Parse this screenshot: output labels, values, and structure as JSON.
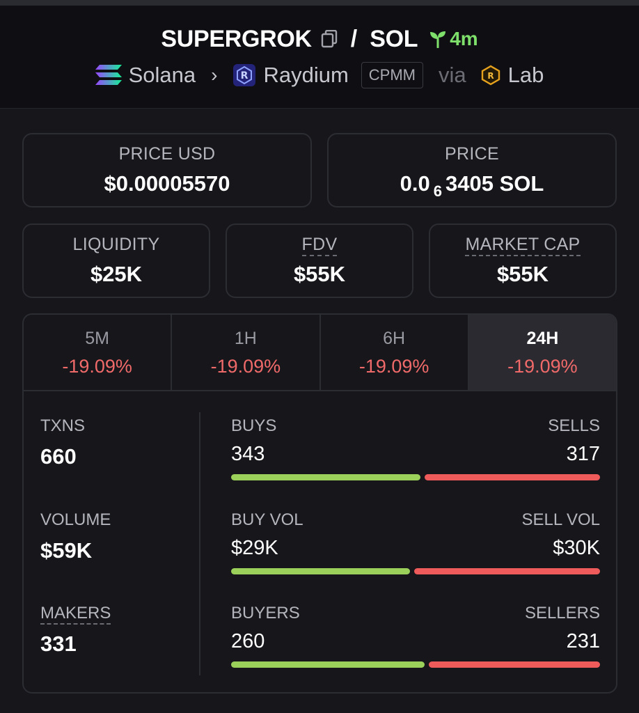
{
  "header": {
    "token_symbol": "SUPERGROK",
    "separator": "/",
    "quote_symbol": "SOL",
    "age": "4m",
    "chain": "Solana",
    "dex": "Raydium",
    "pool_type": "CPMM",
    "via": "via",
    "launchpad": "Lab",
    "icons": [
      "copy-icon",
      "sprout-icon",
      "solana-icon",
      "chevron-right-icon",
      "raydium-icon",
      "lab-icon"
    ]
  },
  "prices": {
    "price_usd_label": "PRICE USD",
    "price_usd_value": "$0.00005570",
    "price_native_label": "PRICE",
    "price_native_prefix": "0.0",
    "price_native_zeros": "6",
    "price_native_suffix": "3405 SOL"
  },
  "metrics": {
    "liquidity_label": "LIQUIDITY",
    "liquidity_value": "$25K",
    "fdv_label": "FDV",
    "fdv_value": "$55K",
    "mcap_label": "MARKET CAP",
    "mcap_value": "$55K"
  },
  "timeframes": [
    {
      "label": "5M",
      "change": "-19.09%"
    },
    {
      "label": "1H",
      "change": "-19.09%"
    },
    {
      "label": "6H",
      "change": "-19.09%"
    },
    {
      "label": "24H",
      "change": "-19.09%",
      "selected": true
    }
  ],
  "stats": {
    "txns_label": "TXNS",
    "txns_value": "660",
    "volume_label": "VOLUME",
    "volume_value": "$59K",
    "makers_label": "MAKERS",
    "makers_value": "331"
  },
  "splits": {
    "buys_label": "BUYS",
    "buys_value": "343",
    "sells_label": "SELLS",
    "sells_value": "317",
    "buy_vol_label": "BUY VOL",
    "buy_vol_value": "$29K",
    "sell_vol_label": "SELL VOL",
    "sell_vol_value": "$30K",
    "buyers_label": "BUYERS",
    "buyers_value": "260",
    "sellers_label": "SELLERS",
    "sellers_value": "231",
    "buys_ratio": 0.52,
    "buy_vol_ratio": 0.49,
    "buyers_ratio": 0.53
  },
  "colors": {
    "positive": "#9bd15a",
    "negative": "#ef5a5a",
    "age_green": "#7ee06b",
    "background": "#16161b"
  }
}
